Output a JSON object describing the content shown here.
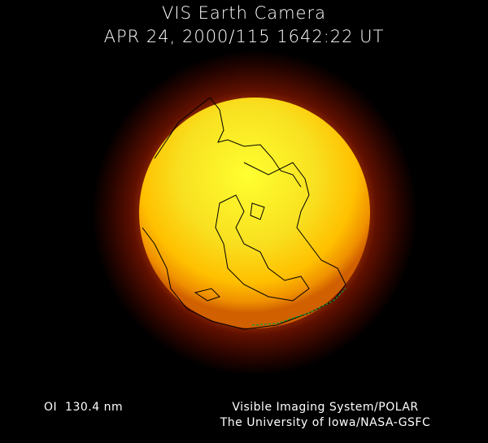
{
  "header": {
    "title": "VIS Earth Camera",
    "timestamp": "APR 24, 2000/115 1642:22 UT"
  },
  "image": {
    "subject": "earth-far-ultraviolet-image",
    "colors": {
      "core": "#ffff20",
      "mid": "#ffc000",
      "limb": "#e07000",
      "glow": "#701000",
      "coastline": "#000000",
      "aurora": "#00a040"
    }
  },
  "footer": {
    "wavelength": "OI  130.4 nm",
    "credit_line1": "Visible Imaging System/POLAR",
    "credit_line2": "The University of Iowa/NASA-GSFC"
  }
}
